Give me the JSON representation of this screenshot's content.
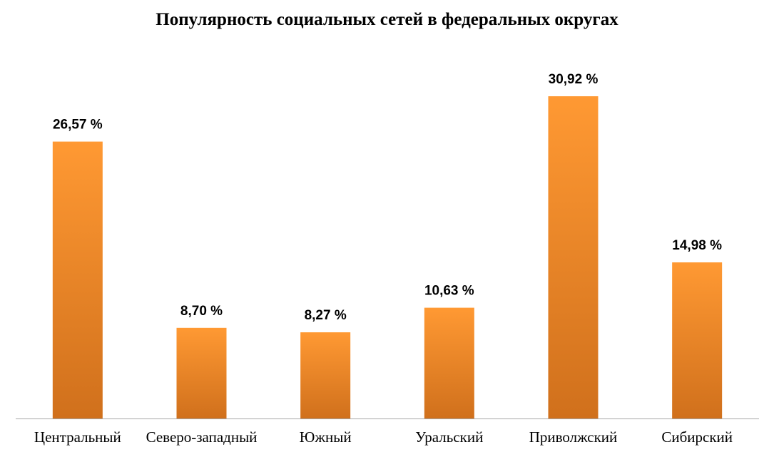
{
  "chart_data": {
    "type": "bar",
    "title": "Популярность социальных сетей в федеральных округах",
    "categories": [
      "Центральный",
      "Северо-западный",
      "Южный",
      "Уральский",
      "Приволжский",
      "Сибирский"
    ],
    "values": [
      26.57,
      8.7,
      8.27,
      10.63,
      30.92,
      14.98
    ],
    "data_labels": [
      "26,57 %",
      "8,70 %",
      "8,27 %",
      "10,63 %",
      "30,92 %",
      "14,98 %"
    ],
    "xlabel": "",
    "ylabel": "",
    "ylim": [
      0,
      35
    ],
    "grid": false,
    "legend": "none",
    "bar_color_top": "#FF9933",
    "bar_color_bottom": "#D0701C",
    "axis_color": "#A6A6A6"
  }
}
